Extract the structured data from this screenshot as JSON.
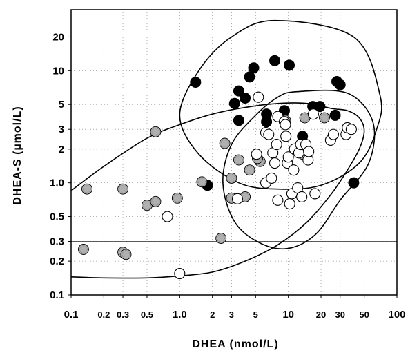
{
  "chart_data": {
    "type": "scatter",
    "xlabel": "DHEA (nmol/L)",
    "ylabel": "DHEA-S  (µmol/L)",
    "x_scale": "log",
    "y_scale": "log",
    "xlim": [
      0.1,
      100
    ],
    "ylim": [
      0.1,
      35
    ],
    "grid": "dotted",
    "x_ticks": [
      {
        "v": 0.1,
        "label": "0.1",
        "major": true
      },
      {
        "v": 0.2,
        "label": "0.2",
        "major": false
      },
      {
        "v": 0.3,
        "label": "0.3",
        "major": false
      },
      {
        "v": 0.5,
        "label": "0.5",
        "major": false
      },
      {
        "v": 1,
        "label": "1.0",
        "major": true
      },
      {
        "v": 2,
        "label": "2",
        "major": false
      },
      {
        "v": 3,
        "label": "3",
        "major": false
      },
      {
        "v": 5,
        "label": "5",
        "major": false
      },
      {
        "v": 10,
        "label": "10",
        "major": true
      },
      {
        "v": 20,
        "label": "20",
        "major": false
      },
      {
        "v": 30,
        "label": "30",
        "major": false
      },
      {
        "v": 50,
        "label": "50",
        "major": false
      },
      {
        "v": 100,
        "label": "100",
        "major": true
      }
    ],
    "y_ticks": [
      {
        "v": 0.1,
        "label": "0.1"
      },
      {
        "v": 0.2,
        "label": "0.2"
      },
      {
        "v": 0.3,
        "label": "0.3"
      },
      {
        "v": 0.5,
        "label": "0.5"
      },
      {
        "v": 1,
        "label": "1.0"
      },
      {
        "v": 2,
        "label": "2"
      },
      {
        "v": 3,
        "label": "3"
      },
      {
        "v": 5,
        "label": "5"
      },
      {
        "v": 10,
        "label": "10"
      },
      {
        "v": 20,
        "label": "20"
      }
    ],
    "series": [
      {
        "style": "filled-black",
        "color": "#000000",
        "points": [
          [
            1.4,
            7.9
          ],
          [
            1.8,
            0.95
          ],
          [
            3.2,
            5.1
          ],
          [
            3.5,
            3.6
          ],
          [
            3.5,
            6.6
          ],
          [
            4.0,
            5.7
          ],
          [
            4.4,
            8.8
          ],
          [
            4.8,
            10.6
          ],
          [
            6.3,
            4.1
          ],
          [
            6.3,
            3.5
          ],
          [
            7.5,
            12.3
          ],
          [
            9.2,
            4.4
          ],
          [
            10.2,
            11.2
          ],
          [
            16.8,
            4.8
          ],
          [
            19.5,
            4.8
          ],
          [
            13.5,
            2.6
          ],
          [
            27,
            4.0
          ],
          [
            28,
            8.0
          ],
          [
            30,
            7.5
          ],
          [
            40,
            1.0
          ]
        ]
      },
      {
        "style": "shaded-gray",
        "color": "#b0b0b0",
        "points": [
          [
            0.14,
            0.88
          ],
          [
            0.13,
            0.255
          ],
          [
            0.3,
            0.88
          ],
          [
            0.3,
            0.24
          ],
          [
            0.32,
            0.23
          ],
          [
            0.5,
            0.63
          ],
          [
            0.6,
            0.68
          ],
          [
            0.6,
            2.85
          ],
          [
            0.95,
            0.73
          ],
          [
            1.6,
            1.02
          ],
          [
            2.4,
            0.32
          ],
          [
            2.6,
            2.25
          ],
          [
            3.0,
            1.1
          ],
          [
            3.0,
            0.73
          ],
          [
            3.5,
            1.6
          ],
          [
            4.0,
            0.75
          ],
          [
            4.4,
            1.3
          ],
          [
            5.5,
            1.55
          ],
          [
            5.2,
            1.65
          ],
          [
            9.4,
            3.6
          ],
          [
            14.2,
            3.8
          ],
          [
            13.6,
            1.8
          ],
          [
            21.5,
            3.8
          ],
          [
            35,
            2.9
          ]
        ]
      },
      {
        "style": "open",
        "color": "#ffffff",
        "points": [
          [
            0.77,
            0.5
          ],
          [
            1.0,
            0.155
          ],
          [
            3.4,
            0.72
          ],
          [
            5.3,
            5.8
          ],
          [
            5.1,
            1.8
          ],
          [
            6.2,
            2.8
          ],
          [
            6.6,
            2.7
          ],
          [
            6.2,
            1.0
          ],
          [
            7.0,
            1.1
          ],
          [
            7.2,
            1.85
          ],
          [
            7.5,
            1.5
          ],
          [
            8.0,
            3.9
          ],
          [
            8.0,
            0.7
          ],
          [
            7.8,
            2.2
          ],
          [
            9.2,
            3.5
          ],
          [
            9.4,
            3.3
          ],
          [
            9.5,
            2.6
          ],
          [
            9.8,
            1.5
          ],
          [
            10.0,
            1.7
          ],
          [
            10.3,
            0.65
          ],
          [
            10.8,
            0.8
          ],
          [
            11.2,
            1.3
          ],
          [
            11.4,
            2.0
          ],
          [
            12.2,
            0.9
          ],
          [
            12.5,
            1.85
          ],
          [
            13.0,
            2.2
          ],
          [
            13.3,
            0.75
          ],
          [
            14.5,
            2.2
          ],
          [
            15.2,
            1.6
          ],
          [
            15.4,
            1.9
          ],
          [
            17.6,
            0.8
          ],
          [
            17.0,
            4.1
          ],
          [
            24.5,
            2.4
          ],
          [
            26,
            2.7
          ],
          [
            34,
            2.7
          ],
          [
            35,
            3.1
          ],
          [
            38,
            3.0
          ]
        ]
      }
    ],
    "reference_lines": [
      {
        "axis": "y",
        "v": 0.3
      }
    ],
    "ellipses": [
      {
        "path_data_units": [
          [
            7.5,
            28
          ],
          [
            40,
            20
          ],
          [
            70,
            6
          ],
          [
            65,
            3
          ],
          [
            45,
            1.5
          ],
          [
            20,
            0.95
          ],
          [
            8,
            0.88
          ],
          [
            3.5,
            1.0
          ],
          [
            1.5,
            1.8
          ],
          [
            1.0,
            4
          ],
          [
            1.5,
            10
          ],
          [
            3,
            20
          ]
        ]
      },
      {
        "path_data_units": [
          [
            12,
            6.5
          ],
          [
            35,
            6.3
          ],
          [
            60,
            3.5
          ],
          [
            55,
            1.5
          ],
          [
            30,
            0.7
          ],
          [
            18,
            0.35
          ],
          [
            10,
            0.26
          ],
          [
            5.5,
            0.29
          ],
          [
            3.2,
            0.45
          ],
          [
            2.5,
            1.0
          ],
          [
            3,
            2.2
          ],
          [
            5,
            4
          ],
          [
            8,
            5.8
          ]
        ]
      },
      {
        "path_data_units": [
          [
            0.1,
            0.85
          ],
          [
            0.2,
            1.4
          ],
          [
            0.5,
            2.5
          ],
          [
            1,
            3.3
          ],
          [
            2,
            4.1
          ],
          [
            4,
            4.7
          ],
          [
            8,
            5.1
          ],
          [
            15,
            5.1
          ],
          [
            25,
            4.6
          ],
          [
            35,
            4.4
          ],
          [
            45,
            3.8
          ],
          [
            50,
            2.9
          ],
          [
            45,
            2.0
          ],
          [
            35,
            1.3
          ],
          [
            25,
            0.8
          ],
          [
            15,
            0.45
          ],
          [
            8,
            0.28
          ],
          [
            4,
            0.2
          ],
          [
            2,
            0.16
          ],
          [
            1,
            0.148
          ],
          [
            0.5,
            0.142
          ],
          [
            0.2,
            0.142
          ],
          [
            0.1,
            0.145
          ]
        ]
      }
    ]
  }
}
